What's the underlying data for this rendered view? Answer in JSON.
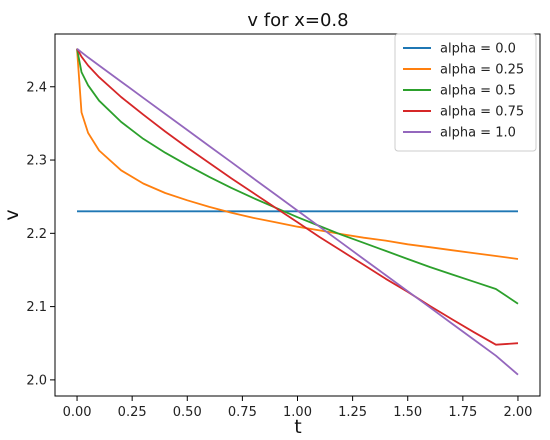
{
  "chart_data": {
    "type": "line",
    "title": "v for  x=0.8",
    "xlabel": "t",
    "ylabel": "v",
    "xlim": [
      -0.1,
      2.1
    ],
    "ylim": [
      1.978,
      2.472
    ],
    "xticks": [
      "0.00",
      "0.25",
      "0.50",
      "0.75",
      "1.00",
      "1.25",
      "1.50",
      "1.75",
      "2.00"
    ],
    "yticks": [
      "2.0",
      "2.1",
      "2.2",
      "2.3",
      "2.4"
    ],
    "grid": false,
    "legend_position": "top-right",
    "x": [
      0.0,
      0.02,
      0.05,
      0.1,
      0.2,
      0.3,
      0.4,
      0.5,
      0.6,
      0.7,
      0.8,
      0.9,
      1.0,
      1.1,
      1.2,
      1.3,
      1.4,
      1.5,
      1.6,
      1.7,
      1.8,
      1.9,
      2.0
    ],
    "series": [
      {
        "name": "alpha = 0.0",
        "color": "#1f77b4",
        "values": [
          2.23,
          2.23,
          2.23,
          2.23,
          2.23,
          2.23,
          2.23,
          2.23,
          2.23,
          2.23,
          2.23,
          2.23,
          2.23,
          2.23,
          2.23,
          2.23,
          2.23,
          2.23,
          2.23,
          2.23,
          2.23,
          2.23,
          2.23
        ]
      },
      {
        "name": "alpha = 0.25",
        "color": "#ff7f0e",
        "values": [
          2.452,
          2.365,
          2.337,
          2.313,
          2.286,
          2.268,
          2.255,
          2.245,
          2.236,
          2.228,
          2.221,
          2.215,
          2.209,
          2.204,
          2.199,
          2.194,
          2.19,
          2.185,
          2.181,
          2.177,
          2.173,
          2.169,
          2.165
        ]
      },
      {
        "name": "alpha = 0.5",
        "color": "#2ca02c",
        "values": [
          2.452,
          2.42,
          2.402,
          2.381,
          2.352,
          2.329,
          2.31,
          2.293,
          2.277,
          2.262,
          2.248,
          2.235,
          2.222,
          2.21,
          2.198,
          2.187,
          2.176,
          2.165,
          2.154,
          2.144,
          2.134,
          2.124,
          2.104
        ]
      },
      {
        "name": "alpha = 0.75",
        "color": "#d62728",
        "values": [
          2.452,
          2.441,
          2.429,
          2.413,
          2.386,
          2.362,
          2.339,
          2.317,
          2.296,
          2.275,
          2.255,
          2.235,
          2.215,
          2.195,
          2.176,
          2.157,
          2.138,
          2.12,
          2.101,
          2.083,
          2.065,
          2.048,
          2.05
        ]
      },
      {
        "name": "alpha = 1.0",
        "color": "#9467bd",
        "values": [
          2.452,
          2.447,
          2.44,
          2.429,
          2.407,
          2.385,
          2.363,
          2.341,
          2.319,
          2.297,
          2.275,
          2.253,
          2.231,
          2.209,
          2.187,
          2.165,
          2.143,
          2.121,
          2.099,
          2.077,
          2.055,
          2.033,
          2.007
        ]
      }
    ]
  }
}
